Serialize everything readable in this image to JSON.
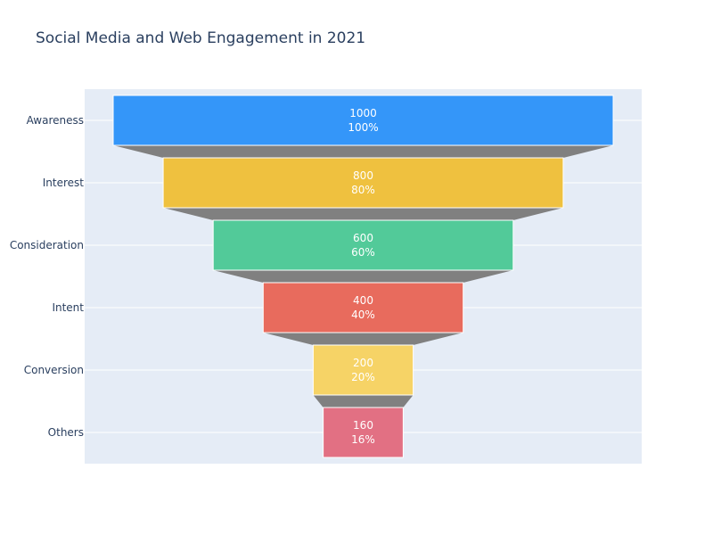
{
  "chart_data": {
    "type": "funnel",
    "title": "Social Media and Web Engagement in 2021",
    "categories": [
      "Awareness",
      "Interest",
      "Consideration",
      "Intent",
      "Conversion",
      "Others"
    ],
    "values": [
      1000,
      800,
      600,
      400,
      200,
      160
    ],
    "percent_of_initial": [
      "100%",
      "80%",
      "60%",
      "40%",
      "20%",
      "16%"
    ],
    "colors": [
      "#3496f9",
      "#efc13f",
      "#52ca99",
      "#e86b5d",
      "#f6d366",
      "#e27083"
    ],
    "connector_color": "#808080",
    "plot_background": "#e5ecf6",
    "grid": true
  }
}
